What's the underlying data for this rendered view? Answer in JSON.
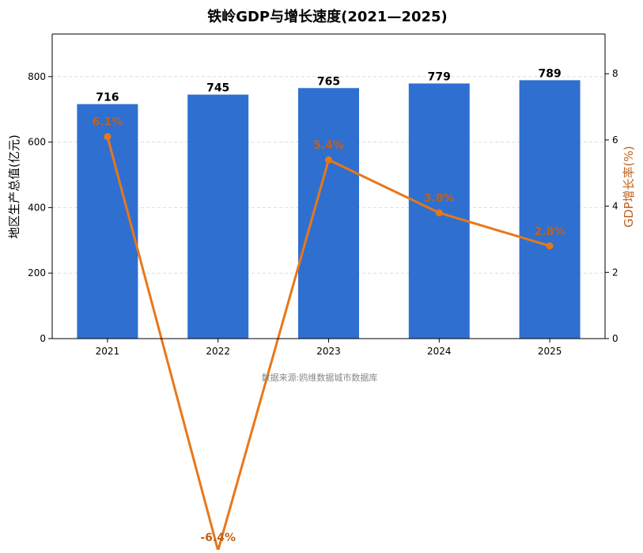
{
  "chart_data": {
    "type": "bar",
    "title": "铁岭GDP与增长速度(2021—2025)",
    "source_note": "数据来源:鸥维数据城市数据库",
    "categories": [
      "2021",
      "2022",
      "2023",
      "2024",
      "2025"
    ],
    "grid": "horizontal dashed",
    "left_axis": {
      "label": "地区生产总值(亿元)",
      "ylim": [
        0,
        930
      ],
      "ticks": [
        "0",
        "200",
        "400",
        "600",
        "800"
      ],
      "tick_values": [
        0,
        200,
        400,
        600,
        800
      ]
    },
    "right_axis": {
      "label": "GDP增长率(%)",
      "ylim": [
        0,
        9.2
      ],
      "ticks": [
        "0",
        "2",
        "4",
        "6",
        "8"
      ],
      "tick_values": [
        0,
        2,
        4,
        6,
        8
      ]
    },
    "series": [
      {
        "type": "bar",
        "axis": "left",
        "values": [
          716,
          745,
          765,
          779,
          789
        ],
        "labels": [
          "716",
          "745",
          "765",
          "779",
          "789"
        ],
        "color": "#2f6fd0"
      },
      {
        "type": "line",
        "axis": "right",
        "values": [
          6.1,
          -6.4,
          5.4,
          3.8,
          2.8
        ],
        "labels": [
          "6.1%",
          "-6.4%",
          "5.4%",
          "3.8%",
          "2.8%"
        ],
        "color": "#e8771a",
        "label_color": "#c0611a"
      }
    ]
  },
  "colors": {
    "axis": "#000000",
    "grid": "#dddddd",
    "source_text": "#888888",
    "right_axis_label": "#c0611a"
  }
}
